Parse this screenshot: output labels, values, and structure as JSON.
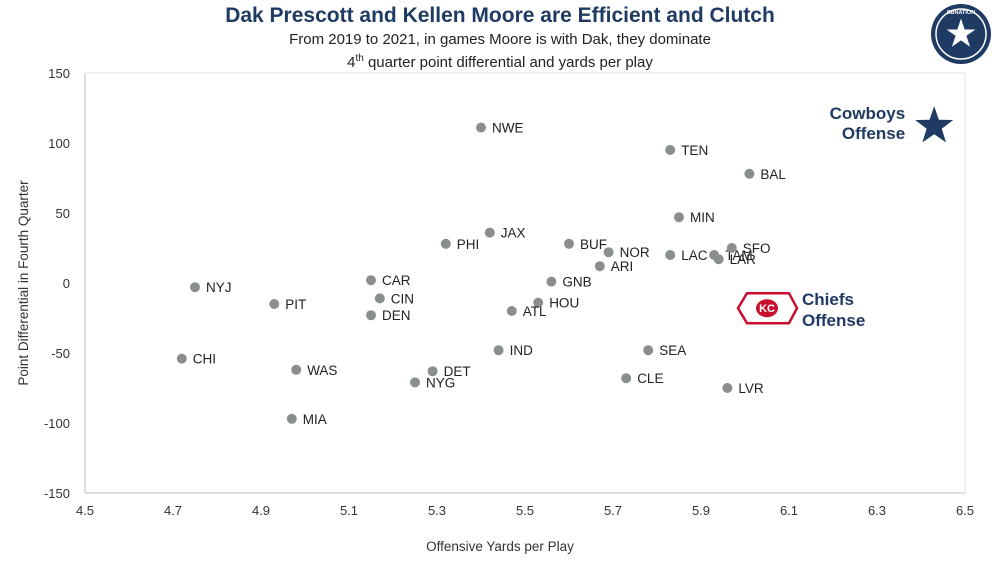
{
  "chart_data": {
    "type": "scatter",
    "title": "Dak Prescott and Kellen Moore are Efficient and Clutch",
    "subtitle_line1": "From 2019 to 2021, in games Moore is with Dak, they dominate",
    "subtitle_line2_sup": "th",
    "subtitle_line2_pre": "4",
    "subtitle_line2_post": " quarter point differential and yards per play",
    "xlabel": "Offensive Yards per Play",
    "ylabel": "Point Differential in Fourth Quarter",
    "xlim": [
      4.5,
      6.5
    ],
    "ylim": [
      -150,
      150
    ],
    "xticks": [
      "4.5",
      "4.7",
      "4.9",
      "5.1",
      "5.3",
      "5.5",
      "5.7",
      "5.9",
      "6.1",
      "6.3",
      "6.5"
    ],
    "yticks": [
      "150",
      "100",
      "50",
      "0",
      "-50",
      "-100",
      "-150"
    ],
    "points": [
      {
        "team": "NWE",
        "x": 5.4,
        "y": 111
      },
      {
        "team": "TEN",
        "x": 5.83,
        "y": 95
      },
      {
        "team": "BAL",
        "x": 6.01,
        "y": 78
      },
      {
        "team": "MIN",
        "x": 5.85,
        "y": 47
      },
      {
        "team": "JAX",
        "x": 5.42,
        "y": 36
      },
      {
        "team": "PHI",
        "x": 5.32,
        "y": 28
      },
      {
        "team": "BUF",
        "x": 5.6,
        "y": 28
      },
      {
        "team": "NOR",
        "x": 5.69,
        "y": 22
      },
      {
        "team": "TAM",
        "x": 5.93,
        "y": 20
      },
      {
        "team": "SFO",
        "x": 5.97,
        "y": 25
      },
      {
        "team": "LAC",
        "x": 5.83,
        "y": 20
      },
      {
        "team": "LAR",
        "x": 5.94,
        "y": 17
      },
      {
        "team": "ARI",
        "x": 5.67,
        "y": 12
      },
      {
        "team": "CAR",
        "x": 5.15,
        "y": 2
      },
      {
        "team": "GNB",
        "x": 5.56,
        "y": 1
      },
      {
        "team": "NYJ",
        "x": 4.75,
        "y": -3
      },
      {
        "team": "CIN",
        "x": 5.17,
        "y": -11
      },
      {
        "team": "PIT",
        "x": 4.93,
        "y": -15
      },
      {
        "team": "HOU",
        "x": 5.53,
        "y": -14
      },
      {
        "team": "ATL",
        "x": 5.47,
        "y": -20
      },
      {
        "team": "DEN",
        "x": 5.15,
        "y": -23
      },
      {
        "team": "IND",
        "x": 5.44,
        "y": -48
      },
      {
        "team": "SEA",
        "x": 5.78,
        "y": -48
      },
      {
        "team": "CHI",
        "x": 4.72,
        "y": -54
      },
      {
        "team": "WAS",
        "x": 4.98,
        "y": -62
      },
      {
        "team": "DET",
        "x": 5.29,
        "y": -63
      },
      {
        "team": "NYG",
        "x": 5.25,
        "y": -71
      },
      {
        "team": "CLE",
        "x": 5.73,
        "y": -68
      },
      {
        "team": "LVR",
        "x": 5.96,
        "y": -75
      },
      {
        "team": "MIA",
        "x": 4.97,
        "y": -97
      }
    ],
    "highlights": [
      {
        "name": "Cowboys Offense",
        "line1": "Cowboys",
        "line2": "Offense",
        "x": 6.43,
        "y": 112,
        "marker": "star"
      },
      {
        "name": "Chiefs Offense",
        "line1": "Chiefs",
        "line2": "Offense",
        "x": 6.05,
        "y": -18,
        "marker": "chiefs-logo"
      }
    ],
    "grid": false
  },
  "colors": {
    "point": "#8a8f8c",
    "title": "#1f3b63",
    "star": "#1f3b63",
    "chiefs_red": "#c8102e",
    "axis": "#bbbbbb"
  },
  "logo_text": "SBNATION"
}
